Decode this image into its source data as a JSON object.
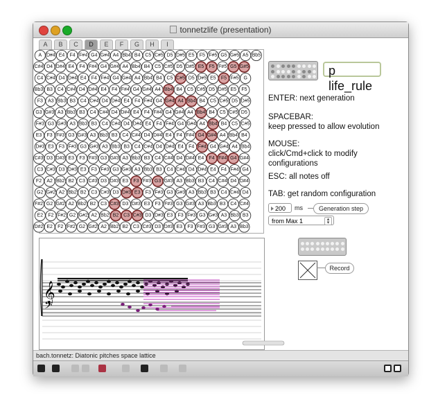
{
  "window": {
    "title": "tonnetzlife (presentation)"
  },
  "tabs": [
    "A",
    "B",
    "C",
    "D",
    "E",
    "F",
    "G",
    "H",
    "I"
  ],
  "active_tab": "D",
  "lattice": {
    "rows": [
      [
        "A",
        "D#4",
        "E4",
        "F4",
        "F#4",
        "G4",
        "G#4",
        "A4",
        "Bb4",
        "B4",
        "C5",
        "C#5",
        "D5",
        "D#5",
        "E5",
        "F5",
        "F#5",
        "G5",
        "G#5",
        "A5",
        "Bb5"
      ],
      [
        "C#4",
        "D4",
        "D#4",
        "E4",
        "F4",
        "F#4",
        "G4",
        "G#4",
        "A4",
        "Bb4",
        "B4",
        "C5",
        "C#5",
        "D5",
        "D#5",
        "E5",
        "F5",
        "F#5",
        "G5",
        "G#5"
      ],
      [
        "C4",
        "C#4",
        "D4",
        "D#4",
        "E4",
        "F4",
        "F#4",
        "G4",
        "G#4",
        "A4",
        "Bb4",
        "B4",
        "C5",
        "C#5",
        "D5",
        "D#5",
        "E5",
        "F5",
        "F#5",
        "G"
      ],
      [
        "Bb3",
        "B3",
        "C4",
        "C#4",
        "D4",
        "D#4",
        "E4",
        "F4",
        "F#4",
        "G4",
        "G#4",
        "A4",
        "Bb4",
        "B4",
        "C5",
        "C#5",
        "D5",
        "D#5",
        "E5",
        "F5"
      ],
      [
        "F3",
        "A3",
        "Bb3",
        "B3",
        "C4",
        "C#4",
        "D4",
        "D#4",
        "E4",
        "F4",
        "F#4",
        "G4",
        "G#4",
        "A4",
        "Bb4",
        "B4",
        "C5",
        "C#5",
        "D5",
        "D#5"
      ],
      [
        "G3",
        "G#3",
        "A3",
        "Bb3",
        "B3",
        "C4",
        "C#4",
        "D4",
        "D#4",
        "E4",
        "F4",
        "F#4",
        "G4",
        "G#4",
        "A4",
        "Bb4",
        "B4",
        "C5",
        "C#5",
        "D5"
      ],
      [
        "F#3",
        "G3",
        "G#3",
        "A3",
        "Bb3",
        "B3",
        "C4",
        "C#4",
        "D4",
        "D#4",
        "E4",
        "F4",
        "F#4",
        "G4",
        "G#4",
        "A4",
        "Bb4",
        "B4",
        "C5",
        "C#5"
      ],
      [
        "E3",
        "F3",
        "F#3",
        "G3",
        "G#3",
        "A3",
        "Bb3",
        "B3",
        "C4",
        "C#4",
        "D4",
        "D#4",
        "E4",
        "F4",
        "F#4",
        "G4",
        "G#4",
        "A4",
        "Bb4",
        "B4"
      ],
      [
        "D#3",
        "E3",
        "F3",
        "F#3",
        "G3",
        "G#3",
        "A3",
        "Bb3",
        "B3",
        "C4",
        "C#4",
        "D4",
        "D#4",
        "E4",
        "F4",
        "F#4",
        "G4",
        "G#4",
        "A4",
        "Bb4"
      ],
      [
        "C#3",
        "D3",
        "D#3",
        "E3",
        "F3",
        "F#3",
        "G3",
        "G#3",
        "A3",
        "Bb3",
        "B3",
        "C4",
        "C#4",
        "D4",
        "D#4",
        "E4",
        "F4",
        "F#4",
        "G4",
        "G#4"
      ],
      [
        "C3",
        "C#3",
        "D3",
        "D#3",
        "E3",
        "F3",
        "F#3",
        "G3",
        "G#3",
        "A3",
        "Bb3",
        "B3",
        "C4",
        "C#4",
        "D4",
        "D#4",
        "E4",
        "F4",
        "F#4",
        "G4"
      ],
      [
        "F2",
        "A2",
        "Bb2",
        "B2",
        "C3",
        "C#3",
        "D3",
        "D#3",
        "E3",
        "F3",
        "F#3",
        "G3",
        "G#3",
        "A3",
        "Bb3",
        "B3",
        "C4",
        "C#4",
        "D4",
        "D#4"
      ],
      [
        "G2",
        "G#2",
        "A2",
        "Bb2",
        "B2",
        "C3",
        "C#3",
        "D3",
        "D#3",
        "E3",
        "F3",
        "F#3",
        "G3",
        "G#3",
        "A3",
        "Bb3",
        "B3",
        "C4",
        "C#4",
        "D4"
      ],
      [
        "F#2",
        "G2",
        "G#2",
        "A2",
        "Bb2",
        "B2",
        "C3",
        "C#3",
        "D3",
        "D#3",
        "E3",
        "F3",
        "F#3",
        "G3",
        "G#3",
        "A3",
        "Bb3",
        "B3",
        "C4",
        "C#4"
      ],
      [
        "E2",
        "F2",
        "F#2",
        "G2",
        "G#2",
        "A2",
        "Bb2",
        "B2",
        "C3",
        "C#3",
        "D3",
        "D#3",
        "E3",
        "F3",
        "F#3",
        "G3",
        "G#3",
        "A3",
        "Bb3",
        "B3"
      ],
      [
        "D#2",
        "E2",
        "F2",
        "F#2",
        "G2",
        "G#2",
        "A2",
        "Bb2",
        "B2",
        "C3",
        "C#3",
        "D3",
        "D#3",
        "E3",
        "F3",
        "F#3",
        "G3",
        "G#3",
        "A3",
        "Bb3"
      ]
    ],
    "active_cells": [
      [
        1,
        15
      ],
      [
        1,
        16
      ],
      [
        1,
        18
      ],
      [
        1,
        19
      ],
      [
        2,
        13
      ],
      [
        2,
        17
      ],
      [
        3,
        12
      ],
      [
        4,
        12
      ],
      [
        4,
        13
      ],
      [
        4,
        14
      ],
      [
        5,
        15
      ],
      [
        6,
        16
      ],
      [
        7,
        15
      ],
      [
        7,
        16
      ],
      [
        8,
        15
      ],
      [
        9,
        16
      ],
      [
        9,
        17
      ],
      [
        9,
        18
      ],
      [
        11,
        9
      ],
      [
        11,
        11
      ],
      [
        12,
        8
      ],
      [
        12,
        9
      ],
      [
        13,
        7
      ],
      [
        14,
        7
      ],
      [
        14,
        8
      ],
      [
        14,
        9
      ]
    ]
  },
  "p_life_rule": "p life_rule",
  "instructions": [
    {
      "head": "ENTER: next generation",
      "body": ""
    },
    {
      "head": "SPACEBAR:",
      "body": "keep pressed to allow evolution"
    },
    {
      "head": "MOUSE:",
      "body": "click/Cmd+click to modify configurations"
    },
    {
      "head": "ESC: all notes off",
      "body": ""
    },
    {
      "head": "TAB: get random configuration",
      "body": ""
    }
  ],
  "generation": {
    "value": "200",
    "unit": "ms",
    "button": "Generation step"
  },
  "source_menu": {
    "selected": "from Max 1"
  },
  "record_button": "Record",
  "status": "bach.tonnetz: Diatonic pitches space lattice",
  "colors": {
    "accent": "#c040c0",
    "active_cell": "#d9a3a3",
    "window_bg": "#e9e9e9"
  }
}
